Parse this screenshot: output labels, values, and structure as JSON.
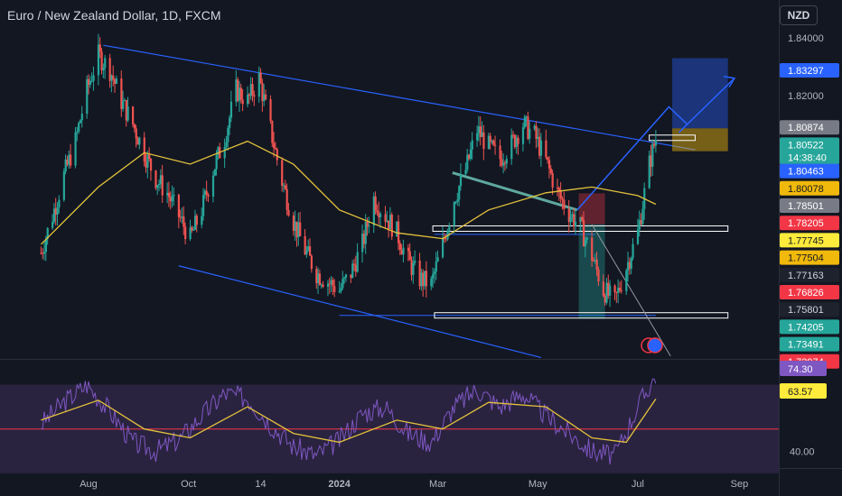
{
  "header": {
    "title": "Euro / New Zealand Dollar, 1D, FXCM",
    "currency": "NZD"
  },
  "colors": {
    "bg": "#131722",
    "up": "#26a69a",
    "down": "#ef5350",
    "ma": "#e3c23b",
    "trend": "#2962ff",
    "rsi": "#7e57c2",
    "rsi_band": "#2a2340",
    "rsi_mid": "#f23645"
  },
  "chart_data": [
    {
      "type": "candlestick",
      "title": "Euro / New Zealand Dollar, 1D, FXCM",
      "ylim": [
        1.728,
        1.847
      ],
      "x_ticks": [
        "Aug",
        "Oct",
        "14",
        "2024",
        "Mar",
        "May",
        "Jul",
        "Sep"
      ],
      "y_ticks": [
        "1.84000",
        "1.82000"
      ],
      "price_labels": [
        {
          "value": "1.83297",
          "color": "#2962ff",
          "text_color": "#ffffff"
        },
        {
          "value": "1.80874",
          "color": "#787b86",
          "text_color": "#ffffff"
        },
        {
          "value": "1.80522",
          "color": "#26a69a",
          "text_color": "#ffffff",
          "sub": "14:38:40"
        },
        {
          "value": "1.80463",
          "color": "#2962ff",
          "text_color": "#ffffff"
        },
        {
          "value": "1.80078",
          "color": "#f0b90b",
          "text_color": "#131722"
        },
        {
          "value": "1.78501",
          "color": "#787b86",
          "text_color": "#ffffff"
        },
        {
          "value": "1.78205",
          "color": "#f23645",
          "text_color": "#ffffff"
        },
        {
          "value": "1.77745",
          "color": "#ffeb3b",
          "text_color": "#131722"
        },
        {
          "value": "1.77504",
          "color": "#f0b90b",
          "text_color": "#131722"
        },
        {
          "value": "1.77163",
          "color": "#1e222d",
          "text_color": "#d1d4dc"
        },
        {
          "value": "1.76826",
          "color": "#f23645",
          "text_color": "#ffffff"
        },
        {
          "value": "1.75801",
          "color": "#1e222d",
          "text_color": "#d1d4dc"
        },
        {
          "value": "1.74205",
          "color": "#26a69a",
          "text_color": "#ffffff"
        },
        {
          "value": "1.73491",
          "color": "#26a69a",
          "text_color": "#ffffff"
        },
        {
          "value": "1.72974",
          "color": "#f23645",
          "text_color": "#ffffff"
        }
      ],
      "close_path": [
        [
          "2023-07-03",
          1.765
        ],
        [
          "2023-07-10",
          1.778
        ],
        [
          "2023-07-17",
          1.792
        ],
        [
          "2023-07-24",
          1.804
        ],
        [
          "2023-07-31",
          1.822
        ],
        [
          "2023-08-07",
          1.834
        ],
        [
          "2023-08-14",
          1.829
        ],
        [
          "2023-08-21",
          1.818
        ],
        [
          "2023-08-28",
          1.81
        ],
        [
          "2023-09-04",
          1.8
        ],
        [
          "2023-09-11",
          1.791
        ],
        [
          "2023-09-18",
          1.786
        ],
        [
          "2023-09-25",
          1.778
        ],
        [
          "2023-10-02",
          1.77
        ],
        [
          "2023-10-09",
          1.78
        ],
        [
          "2023-10-16",
          1.794
        ],
        [
          "2023-10-23",
          1.805
        ],
        [
          "2023-10-30",
          1.822
        ],
        [
          "2023-11-06",
          1.818
        ],
        [
          "2023-11-13",
          1.826
        ],
        [
          "2023-11-20",
          1.808
        ],
        [
          "2023-11-27",
          1.79
        ],
        [
          "2023-12-04",
          1.776
        ],
        [
          "2023-12-11",
          1.766
        ],
        [
          "2023-12-18",
          1.758
        ],
        [
          "2023-12-25",
          1.755
        ],
        [
          "2024-01-01",
          1.752
        ],
        [
          "2024-01-08",
          1.758
        ],
        [
          "2024-01-15",
          1.768
        ],
        [
          "2024-01-22",
          1.784
        ],
        [
          "2024-01-29",
          1.778
        ],
        [
          "2024-02-05",
          1.772
        ],
        [
          "2024-02-12",
          1.762
        ],
        [
          "2024-02-19",
          1.756
        ],
        [
          "2024-02-26",
          1.754
        ],
        [
          "2024-03-04",
          1.768
        ],
        [
          "2024-03-11",
          1.784
        ],
        [
          "2024-03-18",
          1.794
        ],
        [
          "2024-03-25",
          1.808
        ],
        [
          "2024-04-01",
          1.802
        ],
        [
          "2024-04-08",
          1.798
        ],
        [
          "2024-04-15",
          1.803
        ],
        [
          "2024-04-22",
          1.81
        ],
        [
          "2024-04-29",
          1.806
        ],
        [
          "2024-05-06",
          1.797
        ],
        [
          "2024-05-13",
          1.786
        ],
        [
          "2024-05-20",
          1.779
        ],
        [
          "2024-05-27",
          1.774
        ],
        [
          "2024-06-03",
          1.764
        ],
        [
          "2024-06-10",
          1.752
        ],
        [
          "2024-06-17",
          1.748
        ],
        [
          "2024-06-24",
          1.76
        ],
        [
          "2024-07-01",
          1.772
        ],
        [
          "2024-07-08",
          1.796
        ],
        [
          "2024-07-12",
          1.805
        ]
      ],
      "ma_path": [
        [
          "2023-07-03",
          1.768
        ],
        [
          "2023-08-07",
          1.788
        ],
        [
          "2023-09-04",
          1.8
        ],
        [
          "2023-10-02",
          1.796
        ],
        [
          "2023-11-06",
          1.804
        ],
        [
          "2023-12-04",
          1.796
        ],
        [
          "2024-01-01",
          1.78
        ],
        [
          "2024-02-05",
          1.772
        ],
        [
          "2024-03-04",
          1.77
        ],
        [
          "2024-04-01",
          1.78
        ],
        [
          "2024-05-06",
          1.786
        ],
        [
          "2024-06-03",
          1.788
        ],
        [
          "2024-07-01",
          1.785
        ],
        [
          "2024-07-12",
          1.782
        ]
      ]
    },
    {
      "type": "line",
      "title": "",
      "ylim": [
        34,
        80
      ],
      "y_ticks": [
        "40.00"
      ],
      "labels": [
        {
          "value": "74.30",
          "color": "#7e57c2",
          "text_color": "#ffffff"
        },
        {
          "value": "63.57",
          "color": "#ffeb3b",
          "text_color": "#131722"
        }
      ],
      "series": [
        {
          "values": [
            [
              "2023-07-03",
              52
            ],
            [
              "2023-07-17",
              62
            ],
            [
              "2023-07-31",
              70
            ],
            [
              "2023-08-14",
              58
            ],
            [
              "2023-08-28",
              44
            ],
            [
              "2023-09-11",
              40
            ],
            [
              "2023-09-25",
              45
            ],
            [
              "2023-10-09",
              56
            ],
            [
              "2023-10-23",
              66
            ],
            [
              "2023-11-06",
              64
            ],
            [
              "2023-11-20",
              52
            ],
            [
              "2023-12-04",
              42
            ],
            [
              "2023-12-18",
              38
            ],
            [
              "2024-01-01",
              45
            ],
            [
              "2024-01-15",
              57
            ],
            [
              "2024-01-29",
              60
            ],
            [
              "2024-02-12",
              48
            ],
            [
              "2024-02-26",
              44
            ],
            [
              "2024-03-11",
              60
            ],
            [
              "2024-03-25",
              68
            ],
            [
              "2024-04-08",
              60
            ],
            [
              "2024-04-22",
              66
            ],
            [
              "2024-05-06",
              56
            ],
            [
              "2024-05-20",
              48
            ],
            [
              "2024-06-03",
              40
            ],
            [
              "2024-06-17",
              38
            ],
            [
              "2024-07-01",
              60
            ],
            [
              "2024-07-12",
              74.3
            ]
          ]
        },
        {
          "values": [
            [
              "2023-07-03",
              54
            ],
            [
              "2023-08-07",
              63
            ],
            [
              "2023-09-04",
              50
            ],
            [
              "2023-10-02",
              46
            ],
            [
              "2023-11-06",
              60
            ],
            [
              "2023-12-04",
              48
            ],
            [
              "2024-01-01",
              44
            ],
            [
              "2024-02-05",
              54
            ],
            [
              "2024-03-04",
              50
            ],
            [
              "2024-04-01",
              62
            ],
            [
              "2024-05-06",
              60
            ],
            [
              "2024-06-03",
              46
            ],
            [
              "2024-06-24",
              44
            ],
            [
              "2024-07-12",
              63.57
            ]
          ]
        }
      ]
    }
  ]
}
